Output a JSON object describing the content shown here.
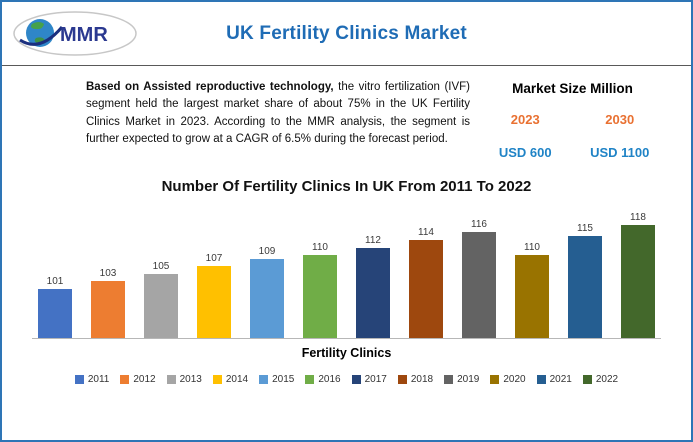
{
  "colors": {
    "border_blue": "#2E75B6",
    "accent_blue": "#1F6CB5",
    "year_orange": "#E97132",
    "value_blue": "#1F83C6"
  },
  "header": {
    "logo_text": "MMR",
    "title": "UK Fertility Clinics Market"
  },
  "summary": {
    "bold_lead": "Based on Assisted reproductive technology,",
    "rest": " the vitro fertilization (IVF) segment held the largest market share of about 75% in the UK Fertility Clinics Market in 2023.  According to the MMR analysis, the segment is further expected to grow at a CAGR of 6.5% during the forecast period."
  },
  "market_size": {
    "title": "Market Size Million",
    "start_year": "2023",
    "end_year": "2030",
    "start_value": "USD 600",
    "end_value": "USD 1100"
  },
  "chart_data": {
    "type": "bar",
    "title": "Number Of Fertility Clinics In UK From 2011 To 2022",
    "categories": [
      "2011",
      "2012",
      "2013",
      "2014",
      "2015",
      "2016",
      "2017",
      "2018",
      "2019",
      "2020",
      "2021",
      "2022"
    ],
    "values": [
      101,
      103,
      105,
      107,
      109,
      110,
      112,
      114,
      116,
      110,
      115,
      118
    ],
    "xlabel": "Fertility Clinics",
    "ylabel": "",
    "ylim": [
      88,
      120
    ],
    "grid": false,
    "value_labels": true,
    "legend_position": "bottom",
    "colors": [
      "#4472C4",
      "#ED7D31",
      "#A5A5A5",
      "#FFC000",
      "#5B9BD5",
      "#70AD47",
      "#264478",
      "#9E480E",
      "#636363",
      "#997300",
      "#255E91",
      "#43682B"
    ]
  }
}
